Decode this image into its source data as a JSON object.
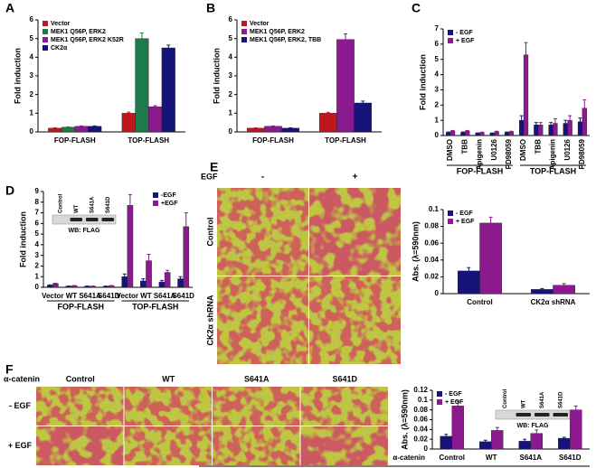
{
  "chart_data": [
    {
      "type": "bar",
      "label": "A",
      "ylabel": "Fold induction",
      "categories": [
        "FOP-FLASH",
        "TOP-FLASH"
      ],
      "ylim": [
        0,
        6
      ],
      "yticks": [
        0,
        1,
        2,
        3,
        4,
        5,
        6
      ],
      "legend": "upper left",
      "series": [
        {
          "name": "Vector",
          "color": "#c0161d",
          "values": [
            0.2,
            1.0
          ],
          "errors": [
            0.02,
            0.06
          ]
        },
        {
          "name": "MEK1 Q56P, ERK2",
          "color": "#1e7a4a",
          "values": [
            0.25,
            5.0
          ],
          "errors": [
            0.02,
            0.3
          ]
        },
        {
          "name": "MEK1 Q56P, ERK2 K52R",
          "color": "#8a1a8e",
          "values": [
            0.3,
            1.35
          ],
          "errors": [
            0.02,
            0.05
          ]
        },
        {
          "name": "CK2α",
          "color": "#14147a",
          "values": [
            0.3,
            4.5
          ],
          "errors": [
            0.02,
            0.15
          ]
        }
      ]
    },
    {
      "type": "bar",
      "label": "B",
      "ylabel": "Fold induction",
      "categories": [
        "FOP-FLASH",
        "TOP-FLASH"
      ],
      "ylim": [
        0,
        6
      ],
      "yticks": [
        0,
        1,
        2,
        3,
        4,
        5,
        6
      ],
      "legend": "upper left",
      "series": [
        {
          "name": "Vector",
          "color": "#c0161d",
          "values": [
            0.2,
            1.0
          ],
          "errors": [
            0.02,
            0.05
          ]
        },
        {
          "name": "MEK1 Q56P, ERK2",
          "color": "#8a1a8e",
          "values": [
            0.3,
            4.95
          ],
          "errors": [
            0.02,
            0.3
          ]
        },
        {
          "name": "MEK1 Q56P, ERK2, TBB",
          "color": "#14147a",
          "values": [
            0.2,
            1.55
          ],
          "errors": [
            0.02,
            0.1
          ]
        }
      ]
    },
    {
      "type": "bar",
      "label": "C",
      "ylabel": "Fold induction",
      "categories": [
        "DMSO",
        "TBB",
        "Apigenin",
        "U0126",
        "PD98059",
        "DMSO",
        "TBB",
        "Apigenin",
        "U0126",
        "PD98059"
      ],
      "group_labels": [
        "FOP-FLASH",
        "TOP-FLASH"
      ],
      "xtick_rotation": 90,
      "ylim": [
        0,
        7
      ],
      "yticks": [
        0,
        1,
        2,
        3,
        4,
        5,
        6,
        7
      ],
      "legend": "upper left",
      "series": [
        {
          "name": "- EGF",
          "color": "#14147a",
          "values": [
            0.2,
            0.2,
            0.15,
            0.15,
            0.2,
            1.0,
            0.7,
            0.7,
            0.8,
            0.9
          ],
          "errors": [
            0.03,
            0.03,
            0.02,
            0.02,
            0.03,
            0.3,
            0.15,
            0.15,
            0.2,
            0.25
          ]
        },
        {
          "name": "+ EGF",
          "color": "#8a1a8e",
          "values": [
            0.3,
            0.3,
            0.2,
            0.25,
            0.25,
            5.3,
            0.7,
            0.8,
            1.0,
            1.8
          ],
          "errors": [
            0.03,
            0.03,
            0.02,
            0.03,
            0.03,
            0.8,
            0.15,
            0.3,
            0.3,
            0.55
          ]
        }
      ]
    },
    {
      "type": "bar",
      "label": "D",
      "ylabel": "Fold induction",
      "categories": [
        "Vector",
        "WT",
        "S641A",
        "S641D",
        "Vector",
        "WT",
        "S641A",
        "S641D"
      ],
      "group_labels": [
        "FOP-FLASH",
        "TOP-FLASH"
      ],
      "ylim": [
        0,
        9
      ],
      "yticks": [
        0,
        1,
        2,
        3,
        4,
        5,
        6,
        7,
        8,
        9
      ],
      "legend": "upper right",
      "inset": {
        "lanes": [
          "Control",
          "WT",
          "S641A",
          "S641D"
        ],
        "caption": "WB: FLAG"
      },
      "series": [
        {
          "name": "-EGF",
          "color": "#14147a",
          "values": [
            0.2,
            0.1,
            0.1,
            0.1,
            1.0,
            0.6,
            0.5,
            0.8
          ],
          "errors": [
            0.03,
            0.02,
            0.02,
            0.02,
            0.25,
            0.2,
            0.15,
            0.2
          ]
        },
        {
          "name": "+EGF",
          "color": "#8a1a8e",
          "values": [
            0.35,
            0.15,
            0.1,
            0.15,
            7.7,
            2.5,
            1.4,
            5.7
          ],
          "errors": [
            0.03,
            0.02,
            0.02,
            0.02,
            1.0,
            0.6,
            0.2,
            1.3
          ]
        }
      ]
    },
    {
      "type": "bar",
      "label": "E",
      "ylabel": "Abs. (λ=590nm)",
      "categories": [
        "Control",
        "CK2α shRNA"
      ],
      "ylim": [
        0,
        0.1
      ],
      "yticks": [
        0,
        0.02,
        0.04,
        0.06,
        0.08,
        0.1
      ],
      "legend": "upper left",
      "series": [
        {
          "name": "- EGF",
          "color": "#14147a",
          "values": [
            0.027,
            0.005
          ],
          "errors": [
            0.004,
            0.001
          ]
        },
        {
          "name": "+ EGF",
          "color": "#8a1a8e",
          "values": [
            0.084,
            0.01
          ],
          "errors": [
            0.007,
            0.002
          ]
        }
      ]
    },
    {
      "type": "bar",
      "label": "F",
      "ylabel": "Abs. (λ=590nm)",
      "xlabel": "α-catenin",
      "categories": [
        "Control",
        "WT",
        "S641A",
        "S641D"
      ],
      "ylim": [
        0,
        0.12
      ],
      "yticks": [
        0,
        0.02,
        0.04,
        0.06,
        0.08,
        0.1,
        0.12
      ],
      "legend": "upper left",
      "inset": {
        "lanes": [
          "Control",
          "WT",
          "S641A",
          "S641D"
        ],
        "caption": "WB: FLAG"
      },
      "series": [
        {
          "name": "- EGF",
          "color": "#14147a",
          "values": [
            0.026,
            0.015,
            0.016,
            0.022
          ],
          "errors": [
            0.004,
            0.003,
            0.004,
            0.002
          ]
        },
        {
          "name": "+ EGF",
          "color": "#8a1a8e",
          "values": [
            0.088,
            0.038,
            0.032,
            0.08
          ],
          "errors": [
            0.01,
            0.006,
            0.007,
            0.008
          ]
        }
      ]
    }
  ],
  "images": {
    "E": {
      "column_label": "EGF",
      "columns": [
        "-",
        "+"
      ],
      "rows": [
        "Control",
        "CK2α shRNA"
      ]
    },
    "F": {
      "column_label": "α-catenin",
      "columns": [
        "Control",
        "WT",
        "S641A",
        "S641D"
      ],
      "rows": [
        "- EGF",
        "+ EGF"
      ]
    }
  }
}
